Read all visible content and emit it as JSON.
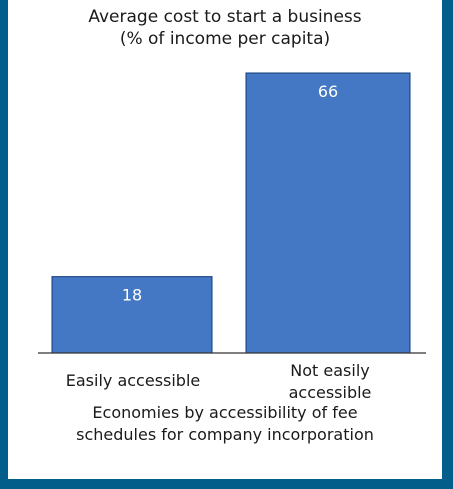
{
  "chart_data": {
    "type": "bar",
    "title_lines": [
      "Average cost to start a business",
      "(% of income per capita)"
    ],
    "categories": [
      "Easily accessible",
      "Not easily accessible"
    ],
    "category_lines": [
      [
        "Easily accessible"
      ],
      [
        "Not easily",
        "accessible"
      ]
    ],
    "values": [
      18,
      66
    ],
    "data_labels": [
      "18",
      "66"
    ],
    "xlabel_lines": [
      "Economies by accessibility of fee",
      "schedules for company incorporation"
    ],
    "ylabel": "",
    "ylim": [
      0,
      66
    ],
    "grid": false,
    "legend": "none",
    "bar_color": "#4478c4",
    "bar_edge_color": "#123a78",
    "axis_color": "#333333"
  }
}
